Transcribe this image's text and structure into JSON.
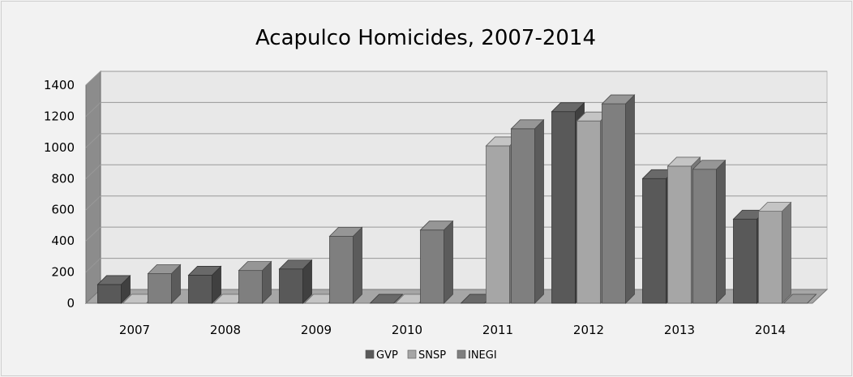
{
  "colors": {
    "GVP": "#595959",
    "SNSP": "#a6a6a6",
    "INEGI": "#7f7f7f",
    "background": "#f2f2f2",
    "plot_wall": "#e8e8e8",
    "gridline": "#999999"
  },
  "chart_data": {
    "type": "bar",
    "subtype": "3d-clustered-column",
    "title": "Acapulco Homicides, 2007-2014",
    "xlabel": "",
    "ylabel": "",
    "categories": [
      "2007",
      "2008",
      "2009",
      "2010",
      "2011",
      "2012",
      "2013",
      "2014"
    ],
    "series": [
      {
        "name": "GVP",
        "values": [
          120,
          180,
          220,
          0,
          0,
          1230,
          800,
          540
        ]
      },
      {
        "name": "SNSP",
        "values": [
          0,
          0,
          0,
          0,
          1010,
          1170,
          880,
          590
        ]
      },
      {
        "name": "INEGI",
        "values": [
          190,
          210,
          430,
          470,
          1120,
          1280,
          860,
          0
        ]
      }
    ],
    "ylim": [
      0,
      1400
    ],
    "yticks": [
      "0",
      "200",
      "400",
      "600",
      "800",
      "1000",
      "1200",
      "1400"
    ],
    "grid": true,
    "legend_position": "bottom"
  }
}
